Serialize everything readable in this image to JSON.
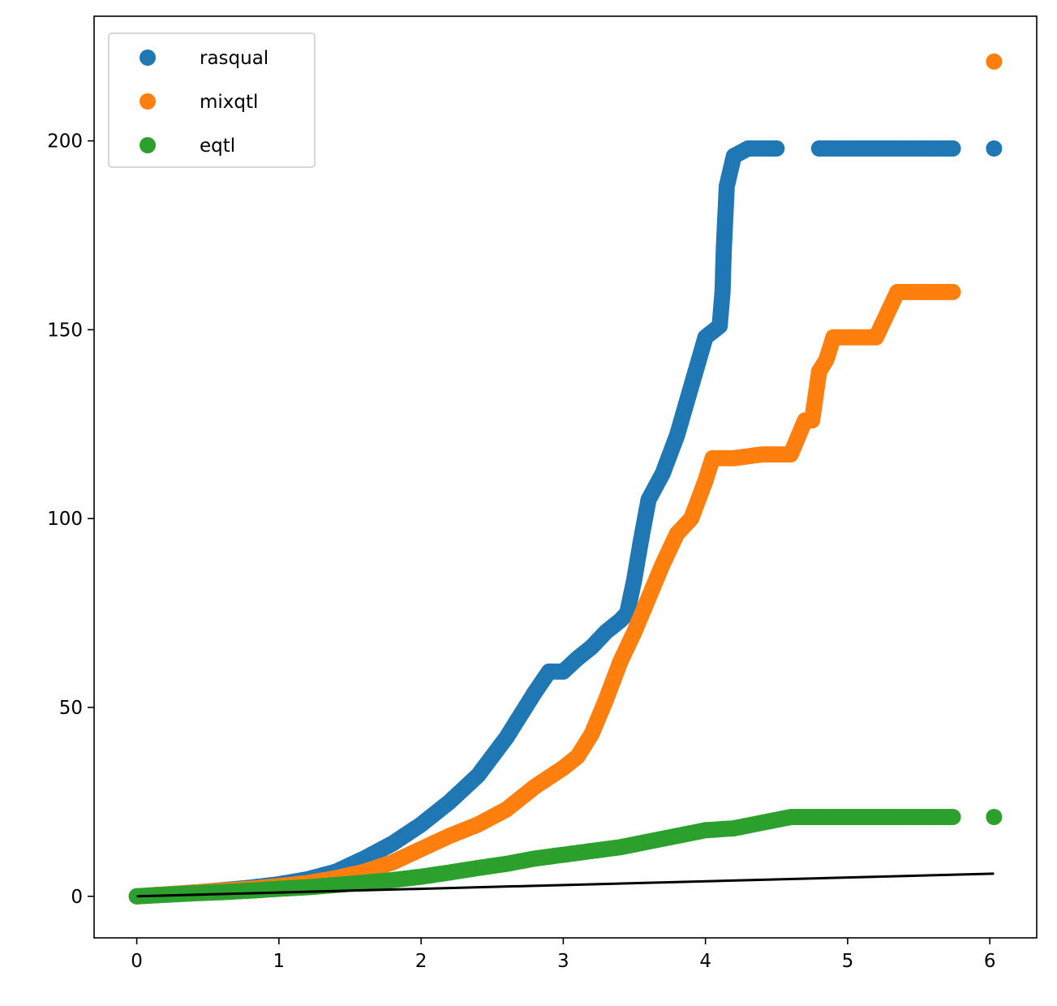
{
  "chart_data": {
    "type": "scatter",
    "title": "",
    "xlabel": "",
    "ylabel": "",
    "xlim": [
      -0.3,
      6.33
    ],
    "ylim": [
      -11,
      233
    ],
    "grid": false,
    "legend_position": "top-left",
    "x_ticks": [
      "0",
      "1",
      "2",
      "3",
      "4",
      "5",
      "6"
    ],
    "y_ticks": [
      "0",
      "50",
      "100",
      "150",
      "200"
    ],
    "series": [
      {
        "name": "rasqual",
        "color": "#1f77b4",
        "points": [
          [
            0.0,
            0
          ],
          [
            0.2,
            0.5
          ],
          [
            0.4,
            1.0
          ],
          [
            0.6,
            1.6
          ],
          [
            0.8,
            2.3
          ],
          [
            1.0,
            3.2
          ],
          [
            1.2,
            4.5
          ],
          [
            1.4,
            6.5
          ],
          [
            1.6,
            10
          ],
          [
            1.8,
            14
          ],
          [
            2.0,
            19
          ],
          [
            2.2,
            25
          ],
          [
            2.4,
            32
          ],
          [
            2.6,
            42
          ],
          [
            2.8,
            54
          ],
          [
            2.9,
            59.5
          ],
          [
            3.0,
            59.5
          ],
          [
            3.1,
            63
          ],
          [
            3.2,
            66
          ],
          [
            3.3,
            70
          ],
          [
            3.4,
            73
          ],
          [
            3.45,
            75
          ],
          [
            3.5,
            84
          ],
          [
            3.55,
            95
          ],
          [
            3.6,
            105
          ],
          [
            3.7,
            112
          ],
          [
            3.8,
            122
          ],
          [
            3.9,
            135
          ],
          [
            4.0,
            148
          ],
          [
            4.1,
            151
          ],
          [
            4.12,
            160
          ],
          [
            4.13,
            172
          ],
          [
            4.15,
            188
          ],
          [
            4.2,
            196
          ],
          [
            4.3,
            198
          ],
          [
            4.5,
            198
          ],
          [
            4.8,
            198
          ],
          [
            5.0,
            198
          ],
          [
            5.2,
            198
          ],
          [
            5.4,
            198
          ],
          [
            5.57,
            198
          ],
          [
            5.74,
            198
          ],
          [
            6.03,
            198
          ]
        ]
      },
      {
        "name": "mixqtl",
        "color": "#ff7f0e",
        "points": [
          [
            0.0,
            0
          ],
          [
            0.2,
            0.5
          ],
          [
            0.4,
            1.0
          ],
          [
            0.6,
            1.5
          ],
          [
            0.8,
            2.0
          ],
          [
            1.0,
            2.7
          ],
          [
            1.2,
            3.5
          ],
          [
            1.4,
            4.8
          ],
          [
            1.6,
            6.5
          ],
          [
            1.8,
            9
          ],
          [
            2.0,
            12.5
          ],
          [
            2.2,
            16
          ],
          [
            2.4,
            19
          ],
          [
            2.6,
            23
          ],
          [
            2.8,
            29
          ],
          [
            3.0,
            34
          ],
          [
            3.1,
            37
          ],
          [
            3.2,
            43
          ],
          [
            3.3,
            52
          ],
          [
            3.4,
            62
          ],
          [
            3.5,
            70
          ],
          [
            3.6,
            79
          ],
          [
            3.7,
            88
          ],
          [
            3.8,
            96
          ],
          [
            3.9,
            100
          ],
          [
            4.0,
            110
          ],
          [
            4.05,
            116
          ],
          [
            4.2,
            116
          ],
          [
            4.4,
            117
          ],
          [
            4.6,
            117
          ],
          [
            4.7,
            126
          ],
          [
            4.75,
            126
          ],
          [
            4.8,
            139
          ],
          [
            4.85,
            142
          ],
          [
            4.9,
            148
          ],
          [
            5.0,
            148
          ],
          [
            5.1,
            148
          ],
          [
            5.2,
            148
          ],
          [
            5.35,
            160
          ],
          [
            5.45,
            160
          ],
          [
            5.57,
            160
          ],
          [
            5.74,
            160
          ],
          [
            6.03,
            221
          ]
        ]
      },
      {
        "name": "eqtl",
        "color": "#2ca02c",
        "points": [
          [
            0.0,
            0
          ],
          [
            0.2,
            0.4
          ],
          [
            0.4,
            0.8
          ],
          [
            0.6,
            1.1
          ],
          [
            0.8,
            1.5
          ],
          [
            1.0,
            2.0
          ],
          [
            1.2,
            2.4
          ],
          [
            1.4,
            3.0
          ],
          [
            1.6,
            3.6
          ],
          [
            1.8,
            4.3
          ],
          [
            2.0,
            5.2
          ],
          [
            2.2,
            6.3
          ],
          [
            2.4,
            7.5
          ],
          [
            2.6,
            8.6
          ],
          [
            2.8,
            10
          ],
          [
            3.0,
            11
          ],
          [
            3.2,
            12
          ],
          [
            3.4,
            13
          ],
          [
            3.6,
            14.5
          ],
          [
            3.8,
            16
          ],
          [
            4.0,
            17.5
          ],
          [
            4.2,
            18
          ],
          [
            4.4,
            19.5
          ],
          [
            4.6,
            21
          ],
          [
            4.8,
            21
          ],
          [
            5.0,
            21
          ],
          [
            5.2,
            21
          ],
          [
            5.4,
            21
          ],
          [
            5.57,
            21
          ],
          [
            5.74,
            21
          ],
          [
            6.03,
            21
          ]
        ]
      }
    ],
    "reference_line": {
      "color": "#000000",
      "points": [
        [
          0.0,
          0
        ],
        [
          6.03,
          6
        ]
      ]
    }
  }
}
